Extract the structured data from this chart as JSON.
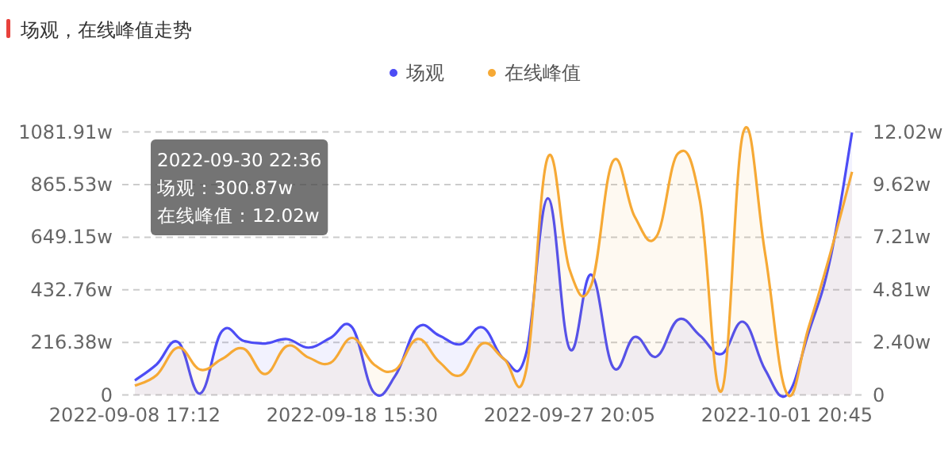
{
  "chart_data": {
    "type": "area",
    "title": "场观，在线峰值走势",
    "categories": [
      "2022-09-08 17:12",
      null,
      null,
      null,
      null,
      null,
      null,
      null,
      null,
      null,
      "2022-09-18 15:30",
      null,
      null,
      null,
      null,
      null,
      null,
      null,
      null,
      null,
      "2022-09-27 20:05",
      null,
      null,
      null,
      null,
      null,
      null,
      null,
      null,
      null,
      "2022-10-01 20:45",
      null,
      null,
      null
    ],
    "series": [
      {
        "name": "场观",
        "color": "#4c4cf5",
        "values": [
          60,
          126,
          217,
          6,
          262,
          223,
          212,
          230,
          195,
          235,
          278,
          10,
          82,
          278,
          245,
          209,
          278,
          147,
          169,
          809,
          191,
          495,
          115,
          239,
          158,
          310,
          245,
          169,
          300.87,
          104,
          0,
          256,
          560,
          1080
        ]
      },
      {
        "name": "在线峰值",
        "color": "#f6a935",
        "axis": "y2",
        "values": [
          0.43,
          0.91,
          2.17,
          1.16,
          1.64,
          2.12,
          0.96,
          2.24,
          1.71,
          1.47,
          2.61,
          1.4,
          1.16,
          2.56,
          1.52,
          0.91,
          2.36,
          1.64,
          1.11,
          10.86,
          5.74,
          5.02,
          10.69,
          8.15,
          7.24,
          11.05,
          8.88,
          0.19,
          12.02,
          6.47,
          0.07,
          3.08,
          6.47,
          10.2
        ]
      }
    ],
    "ylim": [
      0,
      1081.91
    ],
    "yticks": [
      0,
      {
        "value": 216.38,
        "label": "216.38w"
      },
      {
        "value": 432.76,
        "label": "432.76w"
      },
      {
        "value": 649.15,
        "label": "649.15w"
      },
      {
        "value": 865.53,
        "label": "865.53w"
      },
      {
        "value": 1081.91,
        "label": "1081.91w"
      }
    ],
    "y2lim": [
      0,
      12.02
    ],
    "y2ticks": [
      0,
      {
        "value": 2.4,
        "label": "2.40w"
      },
      {
        "value": 4.81,
        "label": "4.81w"
      },
      {
        "value": 7.21,
        "label": "7.21w"
      },
      {
        "value": 9.62,
        "label": "9.62w"
      },
      {
        "value": 12.02,
        "label": "12.02w"
      }
    ],
    "grid": "y",
    "legend": "top",
    "marker": "none",
    "line_style": "solid",
    "annotations": [
      "2022-09-30 22:36",
      "场观：300.87w",
      "在线峰值：12.02w"
    ]
  }
}
